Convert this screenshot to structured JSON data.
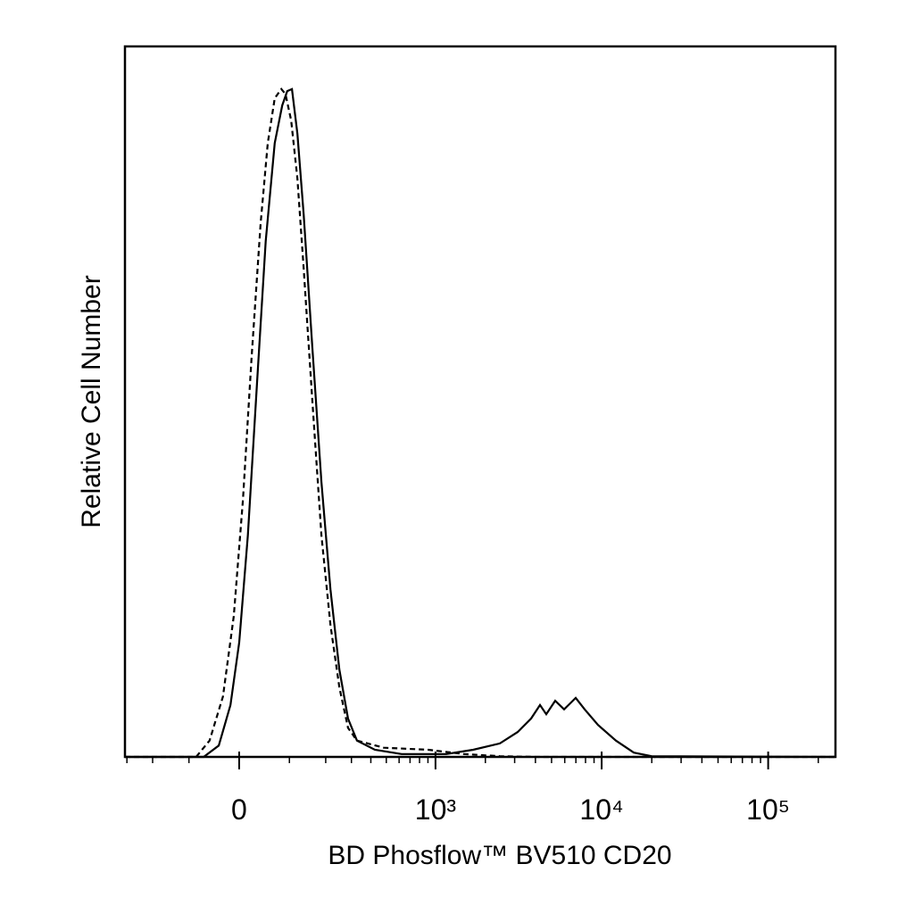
{
  "chart_data": {
    "type": "histogram-overlay",
    "x_label": "BD Phosflow™ BV510 CD20",
    "y_label": "Relative Cell Number",
    "xscale": "asinh",
    "xlim": [
      -309,
      253600
    ],
    "ylim": [
      0,
      100
    ],
    "xticks": [
      0,
      {
        "value": 1000,
        "label": "10³"
      },
      {
        "value": 10000,
        "label": "10⁴"
      },
      {
        "value": 100000,
        "label": "10⁵"
      }
    ],
    "xminorticks": [
      -300,
      -200,
      -100,
      100,
      200,
      300,
      400,
      500,
      600,
      700,
      800,
      900,
      2000,
      3000,
      4000,
      5000,
      6000,
      7000,
      8000,
      9000,
      20000,
      30000,
      40000,
      50000,
      60000,
      70000,
      80000,
      90000,
      200000
    ],
    "series": [
      {
        "color": "#000000",
        "dash": false,
        "x": [
          -309,
          -68,
          -38,
          -16,
          0,
          16,
          33,
          50,
          68,
          84,
          95,
          106,
          119,
          135,
          159,
          186,
          216,
          249,
          285,
          326,
          424,
          621,
          1162,
          1689,
          2444,
          3131,
          3768,
          4263,
          4648,
          5254,
          5945,
          6983,
          7900,
          9510,
          12170,
          15590,
          19950,
          253600
        ],
        "values": [
          0,
          0,
          1.6,
          7.3,
          16.1,
          31.2,
          52.5,
          72.6,
          86.4,
          91.7,
          93.7,
          94.0,
          87.7,
          76.4,
          57.5,
          38.7,
          23.6,
          12.3,
          5.4,
          2.3,
          1.0,
          0.4,
          0.4,
          1.0,
          1.9,
          3.5,
          5.4,
          7.3,
          6.0,
          7.9,
          6.7,
          8.3,
          6.7,
          4.5,
          2.3,
          0.6,
          0.1,
          0
        ]
      },
      {
        "color": "#000000",
        "dash": true,
        "x": [
          -309,
          -84,
          -56,
          -30,
          -10,
          7,
          23,
          40,
          54,
          68,
          82,
          91,
          104,
          119,
          135,
          159,
          186,
          216,
          249,
          285,
          326,
          482,
          904,
          1490,
          2444,
          4010,
          253600
        ],
        "values": [
          0,
          0,
          2.3,
          8.5,
          19.8,
          36.2,
          56.3,
          75.1,
          86.4,
          92.7,
          94.0,
          93.3,
          89.6,
          81.4,
          68.8,
          50.0,
          31.2,
          18.6,
          9.8,
          4.1,
          2.3,
          1.3,
          1.0,
          0.4,
          0.1,
          0,
          0
        ]
      }
    ]
  }
}
